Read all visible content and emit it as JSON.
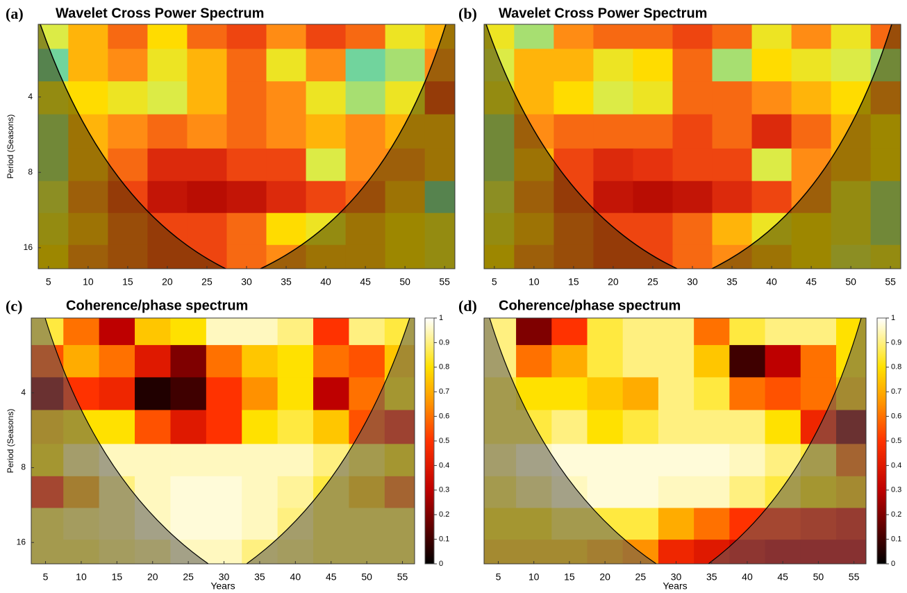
{
  "chart_data": [
    {
      "type": "heatmap",
      "label": "(a)",
      "title": "Wavelet Cross Power Spectrum",
      "ylabel": "Period (Seasons)",
      "colormap": "jet",
      "log_y": true,
      "y_inverted": true,
      "xlim": [
        3.7,
        56.3
      ],
      "xticks": [
        5,
        10,
        15,
        20,
        25,
        30,
        35,
        40,
        45,
        50,
        55
      ],
      "ylim": [
        2.05,
        19.4
      ],
      "yticks": [
        4,
        8,
        16
      ],
      "x": [
        5,
        10,
        15,
        20,
        25,
        30,
        35,
        40,
        45,
        50,
        55
      ],
      "y": [
        2.2,
        3,
        4,
        5.5,
        7.5,
        10,
        13.5,
        18
      ],
      "values": [
        [
          0.55,
          0.7,
          0.8,
          0.65,
          0.8,
          0.85,
          0.75,
          0.85,
          0.8,
          0.6,
          0.7
        ],
        [
          0.45,
          0.7,
          0.75,
          0.6,
          0.7,
          0.8,
          0.6,
          0.75,
          0.45,
          0.5,
          0.75
        ],
        [
          0.6,
          0.65,
          0.6,
          0.55,
          0.7,
          0.8,
          0.75,
          0.6,
          0.5,
          0.6,
          0.85
        ],
        [
          0.5,
          0.7,
          0.75,
          0.8,
          0.75,
          0.8,
          0.75,
          0.7,
          0.75,
          0.7,
          0.7
        ],
        [
          0.5,
          0.7,
          0.8,
          0.9,
          0.9,
          0.85,
          0.85,
          0.55,
          0.75,
          0.75,
          0.7
        ],
        [
          0.55,
          0.75,
          0.85,
          0.95,
          0.97,
          0.95,
          0.9,
          0.85,
          0.8,
          0.7,
          0.45
        ],
        [
          0.6,
          0.7,
          0.8,
          0.85,
          0.85,
          0.8,
          0.65,
          0.6,
          0.7,
          0.65,
          0.6
        ],
        [
          0.65,
          0.75,
          0.8,
          0.85,
          0.85,
          0.8,
          0.75,
          0.7,
          0.7,
          0.65,
          0.6
        ]
      ]
    },
    {
      "type": "heatmap",
      "label": "(b)",
      "title": "Wavelet Cross Power Spectrum",
      "colormap": "jet",
      "log_y": true,
      "y_inverted": true,
      "xlim": [
        3.7,
        56.3
      ],
      "xticks": [
        5,
        10,
        15,
        20,
        25,
        30,
        35,
        40,
        45,
        50,
        55
      ],
      "ylim": [
        2.05,
        19.4
      ],
      "x": [
        5,
        10,
        15,
        20,
        25,
        30,
        35,
        40,
        45,
        50,
        55
      ],
      "y": [
        2.2,
        3,
        4,
        5.5,
        7.5,
        10,
        13.5,
        18
      ],
      "values": [
        [
          0.6,
          0.5,
          0.75,
          0.8,
          0.8,
          0.85,
          0.8,
          0.6,
          0.75,
          0.6,
          0.8
        ],
        [
          0.55,
          0.7,
          0.7,
          0.6,
          0.65,
          0.8,
          0.5,
          0.65,
          0.6,
          0.55,
          0.5
        ],
        [
          0.6,
          0.7,
          0.65,
          0.55,
          0.6,
          0.8,
          0.8,
          0.75,
          0.7,
          0.65,
          0.75
        ],
        [
          0.5,
          0.75,
          0.8,
          0.8,
          0.8,
          0.85,
          0.8,
          0.9,
          0.8,
          0.7,
          0.65
        ],
        [
          0.5,
          0.7,
          0.85,
          0.9,
          0.88,
          0.85,
          0.85,
          0.55,
          0.75,
          0.7,
          0.65
        ],
        [
          0.55,
          0.75,
          0.85,
          0.95,
          0.97,
          0.95,
          0.9,
          0.85,
          0.75,
          0.6,
          0.5
        ],
        [
          0.6,
          0.7,
          0.8,
          0.85,
          0.85,
          0.8,
          0.7,
          0.6,
          0.65,
          0.6,
          0.5
        ],
        [
          0.65,
          0.75,
          0.8,
          0.85,
          0.85,
          0.8,
          0.75,
          0.7,
          0.65,
          0.55,
          0.6
        ]
      ]
    },
    {
      "type": "heatmap",
      "label": "(c)",
      "title": "Coherence/phase spectrum",
      "ylabel": "Period (Seasons)",
      "xlabel": "Years",
      "colormap": "hot",
      "log_y": true,
      "y_inverted": true,
      "xlim": [
        3,
        56.7
      ],
      "xticks": [
        5,
        10,
        15,
        20,
        25,
        30,
        35,
        40,
        45,
        50,
        55
      ],
      "ylim": [
        2,
        19.5
      ],
      "yticks": [
        4,
        8,
        16
      ],
      "clim": [
        0,
        1
      ],
      "cticks": [
        0,
        0.1,
        0.2,
        0.3,
        0.4,
        0.5,
        0.6,
        0.7,
        0.8,
        0.9,
        1
      ],
      "x": [
        5,
        10,
        15,
        20,
        25,
        30,
        35,
        40,
        45,
        50,
        55
      ],
      "y": [
        2.2,
        3,
        4,
        5.5,
        7.5,
        10,
        13.5,
        18
      ],
      "values": [
        [
          0.85,
          0.6,
          0.3,
          0.75,
          0.8,
          0.95,
          0.95,
          0.9,
          0.5,
          0.9,
          0.85
        ],
        [
          0.55,
          0.7,
          0.6,
          0.4,
          0.2,
          0.6,
          0.75,
          0.8,
          0.6,
          0.55,
          0.75
        ],
        [
          0.2,
          0.5,
          0.45,
          0.05,
          0.1,
          0.5,
          0.65,
          0.8,
          0.3,
          0.6,
          0.8
        ],
        [
          0.75,
          0.8,
          0.8,
          0.55,
          0.4,
          0.5,
          0.8,
          0.85,
          0.75,
          0.55,
          0.45
        ],
        [
          0.8,
          0.9,
          0.95,
          0.95,
          0.95,
          0.95,
          0.95,
          0.95,
          0.9,
          0.85,
          0.8
        ],
        [
          0.5,
          0.7,
          0.9,
          0.95,
          0.97,
          0.97,
          0.95,
          0.92,
          0.85,
          0.75,
          0.6
        ],
        [
          0.85,
          0.88,
          0.9,
          0.95,
          0.97,
          0.97,
          0.95,
          0.9,
          0.85,
          0.85,
          0.85
        ],
        [
          0.85,
          0.85,
          0.88,
          0.9,
          0.95,
          0.95,
          0.9,
          0.88,
          0.85,
          0.85,
          0.85
        ]
      ]
    },
    {
      "type": "heatmap",
      "label": "(d)",
      "title": "Coherence/phase spectrum",
      "xlabel": "Years",
      "colormap": "hot",
      "log_y": true,
      "y_inverted": true,
      "xlim": [
        3,
        56.7
      ],
      "xticks": [
        5,
        10,
        15,
        20,
        25,
        30,
        35,
        40,
        45,
        50,
        55
      ],
      "ylim": [
        2,
        19.5
      ],
      "clim": [
        0,
        1
      ],
      "cticks": [
        0,
        0.1,
        0.2,
        0.3,
        0.4,
        0.5,
        0.6,
        0.7,
        0.8,
        0.9,
        1
      ],
      "x": [
        5,
        10,
        15,
        20,
        25,
        30,
        35,
        40,
        45,
        50,
        55
      ],
      "y": [
        2.2,
        3,
        4,
        5.5,
        7.5,
        10,
        13.5,
        18
      ],
      "values": [
        [
          0.9,
          0.2,
          0.5,
          0.85,
          0.9,
          0.9,
          0.6,
          0.85,
          0.9,
          0.9,
          0.8
        ],
        [
          0.9,
          0.6,
          0.7,
          0.85,
          0.9,
          0.9,
          0.75,
          0.1,
          0.3,
          0.6,
          0.8
        ],
        [
          0.85,
          0.8,
          0.8,
          0.75,
          0.7,
          0.9,
          0.85,
          0.6,
          0.55,
          0.6,
          0.75
        ],
        [
          0.85,
          0.85,
          0.9,
          0.8,
          0.85,
          0.9,
          0.9,
          0.9,
          0.8,
          0.45,
          0.2
        ],
        [
          0.9,
          0.95,
          0.97,
          0.97,
          0.97,
          0.97,
          0.97,
          0.95,
          0.9,
          0.85,
          0.6
        ],
        [
          0.85,
          0.9,
          0.95,
          0.97,
          0.97,
          0.95,
          0.95,
          0.9,
          0.85,
          0.8,
          0.75
        ],
        [
          0.8,
          0.8,
          0.85,
          0.85,
          0.85,
          0.7,
          0.6,
          0.5,
          0.5,
          0.45,
          0.4
        ],
        [
          0.75,
          0.75,
          0.75,
          0.7,
          0.65,
          0.45,
          0.4,
          0.35,
          0.3,
          0.3,
          0.3
        ]
      ]
    }
  ]
}
